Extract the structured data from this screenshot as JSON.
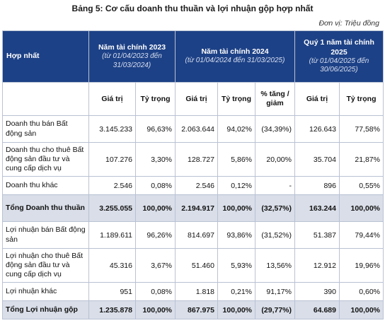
{
  "title": "Bảng 5: Cơ cấu doanh thu thuần và lợi nhuận gộp hợp nhất",
  "unit": "Đơn vị: Triệu đồng",
  "header": {
    "row_label": "Hợp nhất",
    "periods": [
      {
        "name": "Năm tài chính 2023",
        "range": "(từ 01/04/2023 đến 31/03/2024)"
      },
      {
        "name": "Năm tài chính 2024",
        "range": "(từ 01/04/2024 đến 31/03/2025)"
      },
      {
        "name": "Quý 1 năm tài chính 2025",
        "range": "(từ 01/04/2025 đến 30/06/2025)"
      }
    ],
    "columns": [
      "Giá trị",
      "Tỷ trọng",
      "Giá trị",
      "Tỷ trọng",
      "% tăng / giảm",
      "Giá trị",
      "Tỷ trọng"
    ]
  },
  "rows": [
    {
      "label": "Doanh thu bán Bất động sản",
      "values": [
        "3.145.233",
        "96,63%",
        "2.063.644",
        "94,02%",
        "(34,39%)",
        "126.643",
        "77,58%"
      ],
      "total": false
    },
    {
      "label": "Doanh thu cho thuê Bất động sản đầu tư và cung cấp dịch vụ",
      "values": [
        "107.276",
        "3,30%",
        "128.727",
        "5,86%",
        "20,00%",
        "35.704",
        "21,87%"
      ],
      "total": false
    },
    {
      "label": "Doanh thu khác",
      "values": [
        "2.546",
        "0,08%",
        "2.546",
        "0,12%",
        "-",
        "896",
        "0,55%"
      ],
      "total": false
    },
    {
      "label": "Tổng Doanh thu thuần",
      "values": [
        "3.255.055",
        "100,00%",
        "2.194.917",
        "100,00%",
        "(32,57%)",
        "163.244",
        "100,00%"
      ],
      "total": true
    },
    {
      "label": "Lợi nhuận bán Bất động sản",
      "values": [
        "1.189.611",
        "96,26%",
        "814.697",
        "93,86%",
        "(31,52%)",
        "51.387",
        "79,44%"
      ],
      "total": false
    },
    {
      "label": "Lợi nhuận cho thuê Bất động sản đầu tư và cung cấp dịch vụ",
      "values": [
        "45.316",
        "3,67%",
        "51.460",
        "5,93%",
        "13,56%",
        "12.912",
        "19,96%"
      ],
      "total": false
    },
    {
      "label": "Lợi nhuận khác",
      "values": [
        "951",
        "0,08%",
        "1.818",
        "0,21%",
        "91,17%",
        "390",
        "0,60%"
      ],
      "total": false
    },
    {
      "label": "Tổng Lợi nhuận gộp",
      "values": [
        "1.235.878",
        "100,00%",
        "867.975",
        "100,00%",
        "(29,77%)",
        "64.689",
        "100,00%"
      ],
      "total": true
    }
  ]
}
